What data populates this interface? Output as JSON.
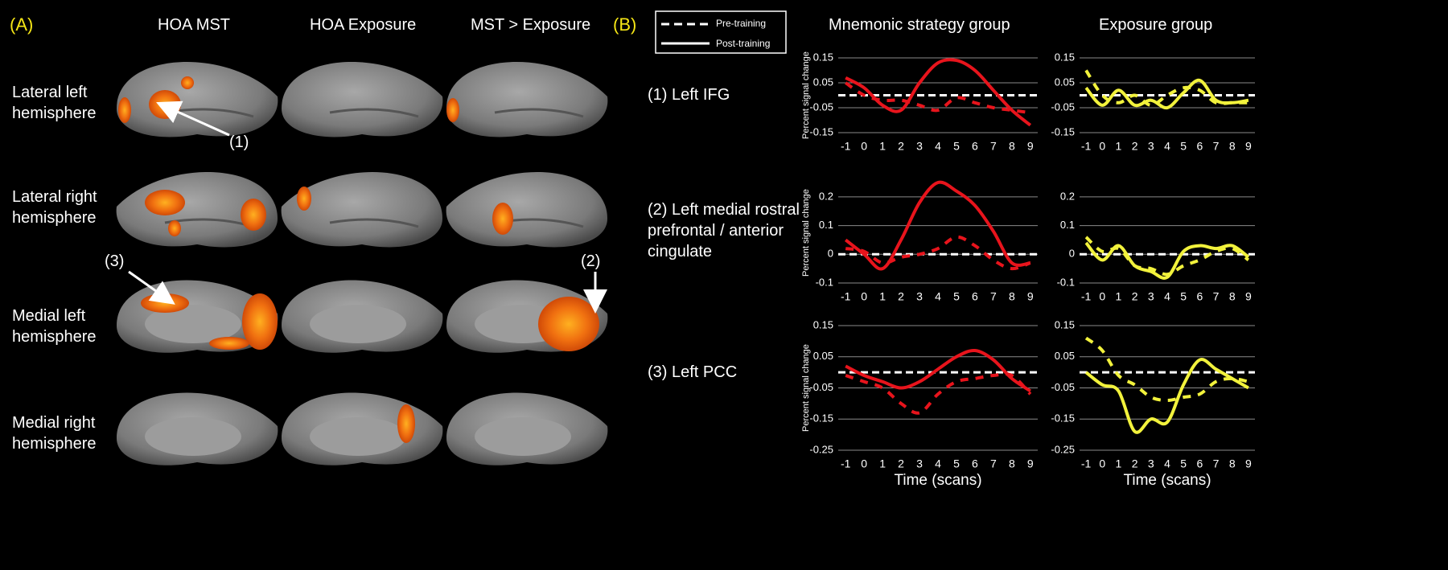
{
  "panel_a": {
    "label": "(A)",
    "columns": [
      "HOA MST",
      "HOA Exposure",
      "MST > Exposure"
    ],
    "rows": [
      "Lateral left hemisphere",
      "Lateral right hemisphere",
      "Medial left hemisphere",
      "Medial right hemisphere"
    ],
    "annotations": [
      "(1)",
      "(3)",
      "(2)"
    ]
  },
  "panel_b": {
    "label": "(B)",
    "columns": [
      "Mnemonic strategy group",
      "Exposure group"
    ],
    "rows": [
      "(1) Left IFG",
      "(2) Left medial rostral prefrontal / anterior cingulate",
      "(3) Left PCC"
    ]
  },
  "chart_data": [
    {
      "type": "line",
      "ylabel": "Percent signal change",
      "x": [
        -1,
        0,
        1,
        2,
        3,
        4,
        5,
        6,
        7,
        8,
        9
      ],
      "xlim": [
        -1.4,
        9.4
      ],
      "xticks": [
        -1,
        0,
        1,
        2,
        3,
        4,
        5,
        6,
        7,
        8,
        9
      ],
      "ylim": [
        -0.15,
        0.15
      ],
      "yticks": [
        -0.15,
        -0.05,
        0.05,
        0.15
      ],
      "grid": true,
      "series": [
        {
          "name": "Pre-training",
          "color": "#e8141c",
          "dashed": true,
          "values": [
            0.05,
            0.0,
            -0.02,
            -0.02,
            -0.04,
            -0.06,
            -0.01,
            -0.03,
            -0.05,
            -0.06,
            -0.07
          ]
        },
        {
          "name": "Post-training",
          "color": "#e8141c",
          "dashed": false,
          "values": [
            0.07,
            0.03,
            -0.04,
            -0.06,
            0.05,
            0.13,
            0.14,
            0.1,
            0.02,
            -0.06,
            -0.12
          ]
        }
      ]
    },
    {
      "type": "line",
      "x": [
        -1,
        0,
        1,
        2,
        3,
        4,
        5,
        6,
        7,
        8,
        9
      ],
      "xlim": [
        -1.4,
        9.4
      ],
      "xticks": [
        -1,
        0,
        1,
        2,
        3,
        4,
        5,
        6,
        7,
        8,
        9
      ],
      "ylim": [
        -0.15,
        0.15
      ],
      "yticks": [
        -0.15,
        -0.05,
        0.05,
        0.15
      ],
      "grid": true,
      "series": [
        {
          "name": "Pre-training",
          "color": "#f2f23c",
          "dashed": true,
          "values": [
            0.1,
            0.0,
            -0.03,
            0.0,
            -0.04,
            0.0,
            0.03,
            0.02,
            -0.03,
            -0.03,
            -0.03
          ]
        },
        {
          "name": "Post-training",
          "color": "#f2f23c",
          "dashed": false,
          "values": [
            0.03,
            -0.04,
            0.02,
            -0.04,
            -0.02,
            -0.05,
            0.01,
            0.06,
            -0.02,
            -0.03,
            -0.02
          ]
        }
      ]
    },
    {
      "type": "line",
      "ylabel": "Percent signal change",
      "x": [
        -1,
        0,
        1,
        2,
        3,
        4,
        5,
        6,
        7,
        8,
        9
      ],
      "xlim": [
        -1.4,
        9.4
      ],
      "xticks": [
        -1,
        0,
        1,
        2,
        3,
        4,
        5,
        6,
        7,
        8,
        9
      ],
      "ylim": [
        -0.1,
        0.25
      ],
      "yticks": [
        -0.1,
        0,
        0.1,
        0.2
      ],
      "grid": true,
      "series": [
        {
          "name": "Pre-training",
          "color": "#e8141c",
          "dashed": true,
          "values": [
            0.02,
            0.01,
            -0.03,
            -0.01,
            0.0,
            0.02,
            0.06,
            0.03,
            -0.02,
            -0.05,
            -0.03
          ]
        },
        {
          "name": "Post-training",
          "color": "#e8141c",
          "dashed": false,
          "values": [
            0.05,
            0.0,
            -0.05,
            0.05,
            0.18,
            0.25,
            0.22,
            0.17,
            0.08,
            -0.03,
            -0.03
          ]
        }
      ]
    },
    {
      "type": "line",
      "x": [
        -1,
        0,
        1,
        2,
        3,
        4,
        5,
        6,
        7,
        8,
        9
      ],
      "xlim": [
        -1.4,
        9.4
      ],
      "xticks": [
        -1,
        0,
        1,
        2,
        3,
        4,
        5,
        6,
        7,
        8,
        9
      ],
      "ylim": [
        -0.1,
        0.25
      ],
      "yticks": [
        -0.1,
        0,
        0.1,
        0.2
      ],
      "grid": true,
      "series": [
        {
          "name": "Pre-training",
          "color": "#f2f23c",
          "dashed": true,
          "values": [
            0.06,
            0.01,
            0.02,
            -0.04,
            -0.05,
            -0.07,
            -0.04,
            -0.02,
            0.01,
            0.02,
            -0.02
          ]
        },
        {
          "name": "Post-training",
          "color": "#f2f23c",
          "dashed": false,
          "values": [
            0.04,
            -0.02,
            0.03,
            -0.04,
            -0.06,
            -0.08,
            0.01,
            0.03,
            0.02,
            0.03,
            -0.01
          ]
        }
      ]
    },
    {
      "type": "line",
      "ylabel": "Percent signal change",
      "xlabel": "Time (scans)",
      "x": [
        -1,
        0,
        1,
        2,
        3,
        4,
        5,
        6,
        7,
        8,
        9
      ],
      "xlim": [
        -1.4,
        9.4
      ],
      "xticks": [
        -1,
        0,
        1,
        2,
        3,
        4,
        5,
        6,
        7,
        8,
        9
      ],
      "ylim": [
        -0.25,
        0.15
      ],
      "yticks": [
        -0.25,
        -0.15,
        -0.05,
        0.05,
        0.15
      ],
      "grid": true,
      "series": [
        {
          "name": "Pre-training",
          "color": "#e8141c",
          "dashed": true,
          "values": [
            -0.01,
            -0.03,
            -0.05,
            -0.1,
            -0.13,
            -0.07,
            -0.03,
            -0.02,
            -0.01,
            -0.01,
            -0.07
          ]
        },
        {
          "name": "Post-training",
          "color": "#e8141c",
          "dashed": false,
          "values": [
            0.02,
            -0.01,
            -0.03,
            -0.05,
            -0.03,
            0.01,
            0.05,
            0.07,
            0.04,
            -0.02,
            -0.06
          ]
        }
      ]
    },
    {
      "type": "line",
      "xlabel": "Time (scans)",
      "x": [
        -1,
        0,
        1,
        2,
        3,
        4,
        5,
        6,
        7,
        8,
        9
      ],
      "xlim": [
        -1.4,
        9.4
      ],
      "xticks": [
        -1,
        0,
        1,
        2,
        3,
        4,
        5,
        6,
        7,
        8,
        9
      ],
      "ylim": [
        -0.25,
        0.15
      ],
      "yticks": [
        -0.25,
        -0.15,
        -0.05,
        0.05,
        0.15
      ],
      "grid": true,
      "series": [
        {
          "name": "Pre-training",
          "color": "#f2f23c",
          "dashed": true,
          "values": [
            0.11,
            0.07,
            -0.01,
            -0.04,
            -0.08,
            -0.09,
            -0.08,
            -0.07,
            -0.03,
            -0.02,
            -0.03
          ]
        },
        {
          "name": "Post-training",
          "color": "#f2f23c",
          "dashed": false,
          "values": [
            0.0,
            -0.04,
            -0.06,
            -0.19,
            -0.15,
            -0.16,
            -0.04,
            0.04,
            0.01,
            -0.02,
            -0.05
          ]
        }
      ]
    }
  ]
}
